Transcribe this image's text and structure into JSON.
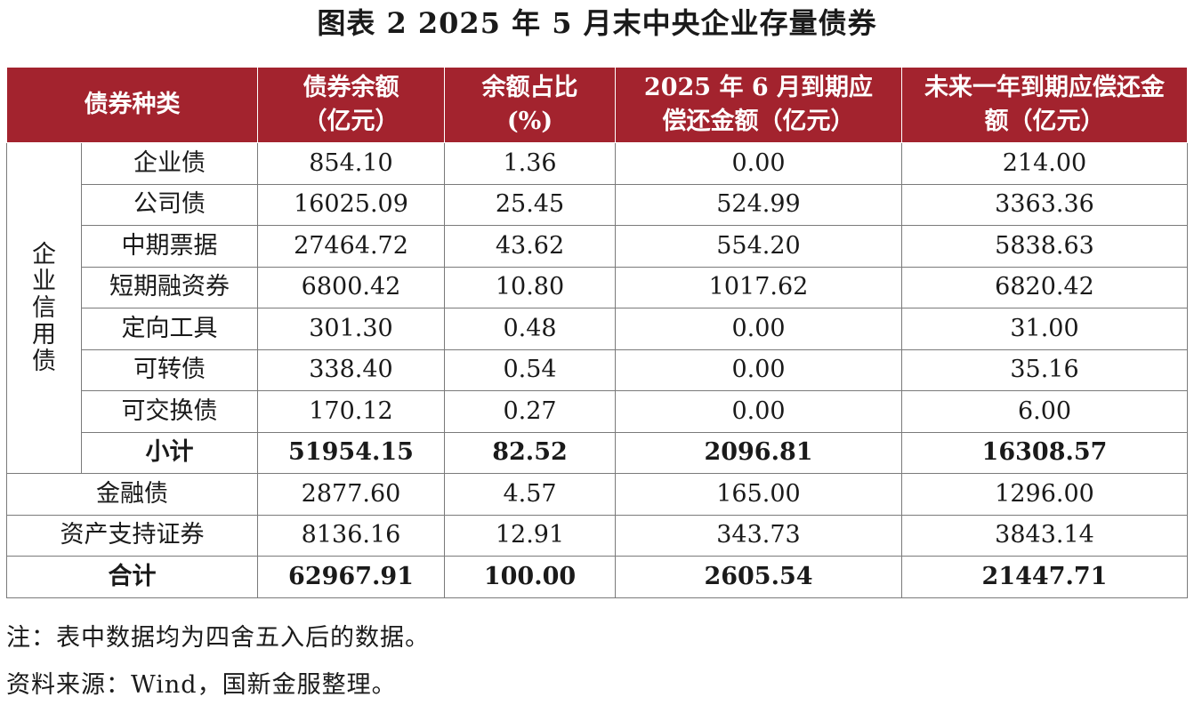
{
  "title": "图表 2 2025 年 5 月末中央企业存量债券",
  "table": {
    "headers": {
      "category": "债券种类",
      "balance": "债券余额（亿元）",
      "share": "余额占比(%)",
      "june_due": "2025 年 6 月到期应偿还金额（亿元）",
      "year_due": "未来一年到期应偿还金额（亿元）"
    },
    "group_label": "企业信用债",
    "group_rows": [
      {
        "name": "企业债",
        "balance": "854.10",
        "share": "1.36",
        "june_due": "0.00",
        "year_due": "214.00"
      },
      {
        "name": "公司债",
        "balance": "16025.09",
        "share": "25.45",
        "june_due": "524.99",
        "year_due": "3363.36"
      },
      {
        "name": "中期票据",
        "balance": "27464.72",
        "share": "43.62",
        "june_due": "554.20",
        "year_due": "5838.63"
      },
      {
        "name": "短期融资券",
        "balance": "6800.42",
        "share": "10.80",
        "june_due": "1017.62",
        "year_due": "6820.42"
      },
      {
        "name": "定向工具",
        "balance": "301.30",
        "share": "0.48",
        "june_due": "0.00",
        "year_due": "31.00"
      },
      {
        "name": "可转债",
        "balance": "338.40",
        "share": "0.54",
        "june_due": "0.00",
        "year_due": "35.16"
      },
      {
        "name": "可交换债",
        "balance": "170.12",
        "share": "0.27",
        "june_due": "0.00",
        "year_due": "6.00"
      }
    ],
    "subtotal": {
      "name": "小计",
      "balance": "51954.15",
      "share": "82.52",
      "june_due": "2096.81",
      "year_due": "16308.57"
    },
    "other_rows": [
      {
        "name": "金融债",
        "balance": "2877.60",
        "share": "4.57",
        "june_due": "165.00",
        "year_due": "1296.00"
      },
      {
        "name": "资产支持证券",
        "balance": "8136.16",
        "share": "12.91",
        "june_due": "343.73",
        "year_due": "3843.14"
      }
    ],
    "total": {
      "name": "合计",
      "balance": "62967.91",
      "share": "100.00",
      "june_due": "2605.54",
      "year_due": "21447.71"
    }
  },
  "notes": {
    "note": "注：表中数据均为四舍五入后的数据。",
    "source": "资料来源：Wind，国新金服整理。"
  }
}
